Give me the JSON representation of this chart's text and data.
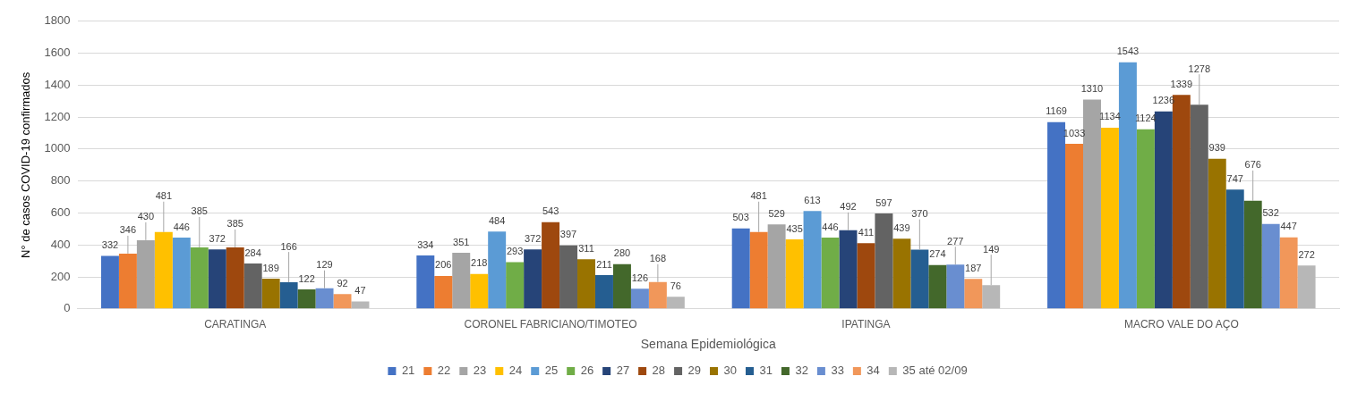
{
  "chart_data": {
    "type": "bar",
    "xlabel": "Semana Epidemiológica",
    "ylabel": "N° de casos COVID-19 confirmados",
    "categories": [
      "CARATINGA",
      "CORONEL FABRICIANO/TIMOTEO",
      "IPATINGA",
      "MACRO VALE DO AÇO"
    ],
    "series": [
      {
        "name": "21",
        "color": "#4472c4",
        "values": [
          332,
          334,
          503,
          1169
        ]
      },
      {
        "name": "22",
        "color": "#ed7d31",
        "values": [
          346,
          206,
          481,
          1033
        ]
      },
      {
        "name": "23",
        "color": "#a5a5a5",
        "values": [
          430,
          351,
          529,
          1310
        ]
      },
      {
        "name": "24",
        "color": "#ffc000",
        "values": [
          481,
          218,
          435,
          1134
        ]
      },
      {
        "name": "25",
        "color": "#5b9bd5",
        "values": [
          446,
          484,
          613,
          1543
        ]
      },
      {
        "name": "26",
        "color": "#70ad47",
        "values": [
          385,
          293,
          446,
          1124
        ]
      },
      {
        "name": "27",
        "color": "#264478",
        "values": [
          372,
          372,
          492,
          1236
        ]
      },
      {
        "name": "28",
        "color": "#9e480e",
        "values": [
          385,
          543,
          411,
          1339
        ]
      },
      {
        "name": "29",
        "color": "#636363",
        "values": [
          284,
          397,
          597,
          1278
        ]
      },
      {
        "name": "30",
        "color": "#997300",
        "values": [
          189,
          311,
          439,
          939
        ]
      },
      {
        "name": "31",
        "color": "#255e91",
        "values": [
          166,
          211,
          370,
          747
        ]
      },
      {
        "name": "32",
        "color": "#43682b",
        "values": [
          122,
          280,
          274,
          676
        ]
      },
      {
        "name": "33",
        "color": "#698ed0",
        "values": [
          129,
          126,
          277,
          532
        ]
      },
      {
        "name": "34",
        "color": "#f1975a",
        "values": [
          92,
          168,
          187,
          447
        ]
      },
      {
        "name": "35 até 02/09",
        "color": "#b7b7b7",
        "values": [
          47,
          76,
          149,
          272
        ]
      }
    ],
    "ylim": [
      0,
      1800
    ],
    "yticks": [
      0,
      200,
      400,
      600,
      800,
      1000,
      1200,
      1400,
      1600,
      1800
    ],
    "grid": "y",
    "legend": "bottom",
    "data_labels": true
  }
}
